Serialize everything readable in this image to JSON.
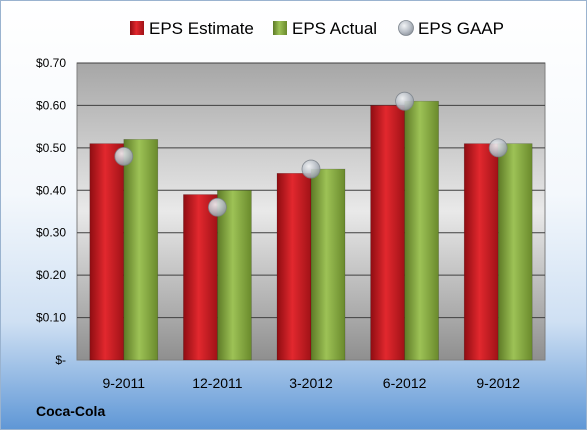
{
  "company_label": "Coca-Cola",
  "chart_data": {
    "type": "bar",
    "categories": [
      "9-2011",
      "12-2011",
      "3-2012",
      "6-2012",
      "9-2012"
    ],
    "series": [
      {
        "name": "EPS Estimate",
        "kind": "bar",
        "color": "#c8161d",
        "values": [
          0.51,
          0.39,
          0.44,
          0.6,
          0.51
        ]
      },
      {
        "name": "EPS Actual",
        "kind": "bar",
        "color": "#7fa23a",
        "values": [
          0.52,
          0.4,
          0.45,
          0.61,
          0.51
        ]
      },
      {
        "name": "EPS GAAP",
        "kind": "marker",
        "color": "#b8bec6",
        "values": [
          0.48,
          0.36,
          0.45,
          0.61,
          0.5
        ]
      }
    ],
    "ylim": [
      0,
      0.7
    ],
    "yticks": [
      0,
      0.1,
      0.2,
      0.3,
      0.4,
      0.5,
      0.6,
      0.7
    ],
    "ytick_labels": [
      "$-",
      "$0.10",
      "$0.20",
      "$0.30",
      "$0.40",
      "$0.50",
      "$0.60",
      "$0.70"
    ],
    "grid": true,
    "legend_position": "top"
  }
}
